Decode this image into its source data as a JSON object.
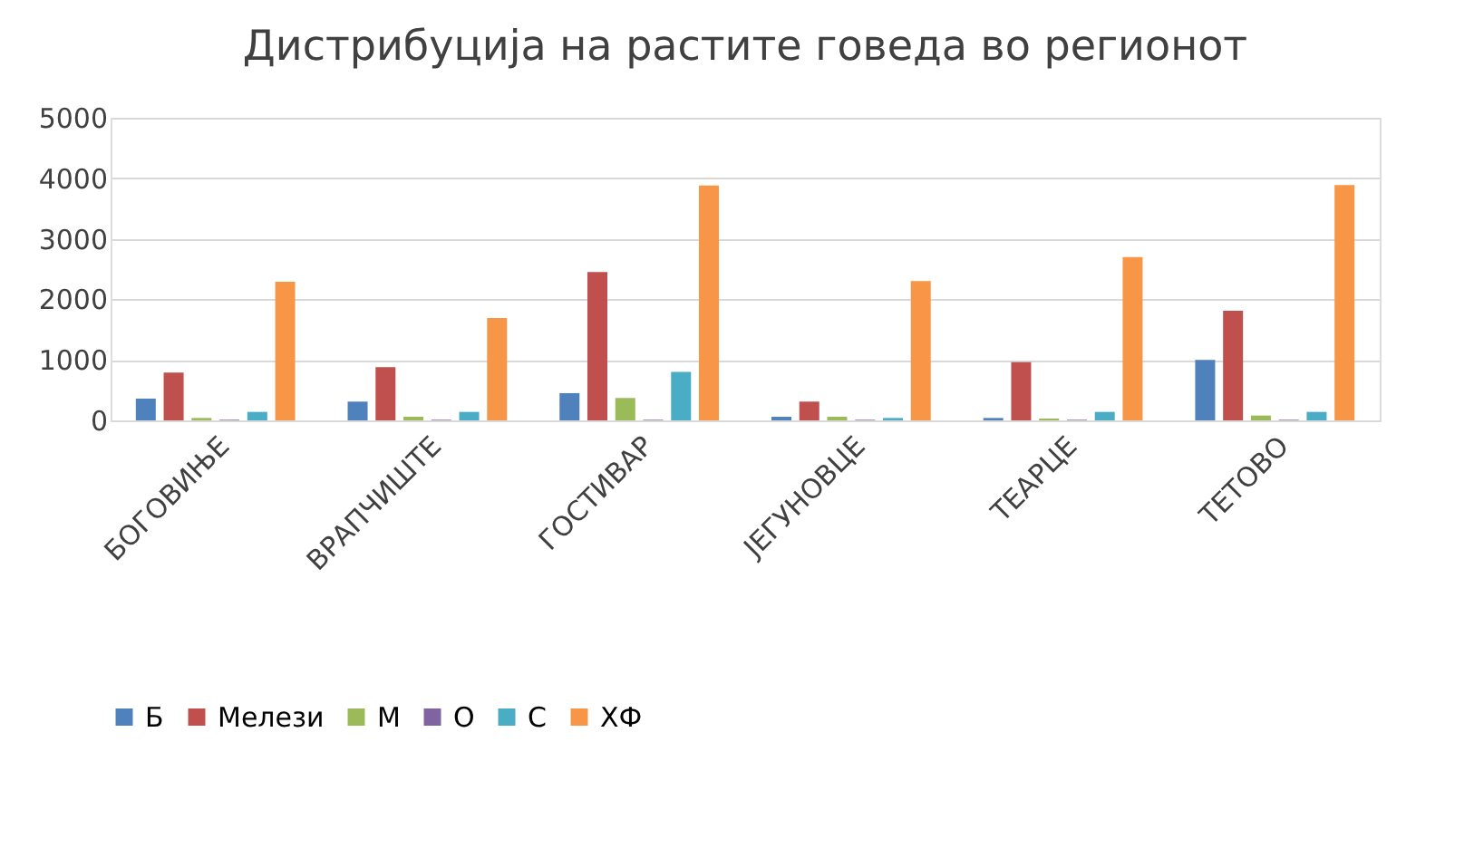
{
  "chart_data": {
    "type": "bar",
    "title": "Дистрибуција на растите говеда во регионот",
    "categories": [
      "БОГОВИЊЕ",
      "ВРАПЧИШТЕ",
      "ГОСТИВАР",
      "ЈЕГУНОВЦЕ",
      "ТЕАРЦЕ",
      "ТЕТОВО"
    ],
    "series": [
      {
        "name": "Б",
        "color": "#4f81bd",
        "values": [
          360,
          310,
          450,
          60,
          40,
          1000
        ]
      },
      {
        "name": "Мелези",
        "color": "#c0504d",
        "values": [
          790,
          880,
          2450,
          310,
          960,
          1810
        ]
      },
      {
        "name": "М",
        "color": "#9bbb59",
        "values": [
          40,
          60,
          370,
          60,
          30,
          80
        ]
      },
      {
        "name": "О",
        "color": "#8064a2",
        "values": [
          10,
          10,
          10,
          10,
          10,
          10
        ]
      },
      {
        "name": "С",
        "color": "#4bacc6",
        "values": [
          140,
          140,
          800,
          40,
          140,
          140
        ]
      },
      {
        "name": "ХФ",
        "color": "#f79646",
        "values": [
          2290,
          1690,
          3880,
          2300,
          2700,
          3890
        ]
      }
    ],
    "ylim": [
      0,
      5000
    ],
    "yticks": [
      0,
      1000,
      2000,
      3000,
      4000,
      5000
    ],
    "grid": "y",
    "legend": "bottom"
  }
}
